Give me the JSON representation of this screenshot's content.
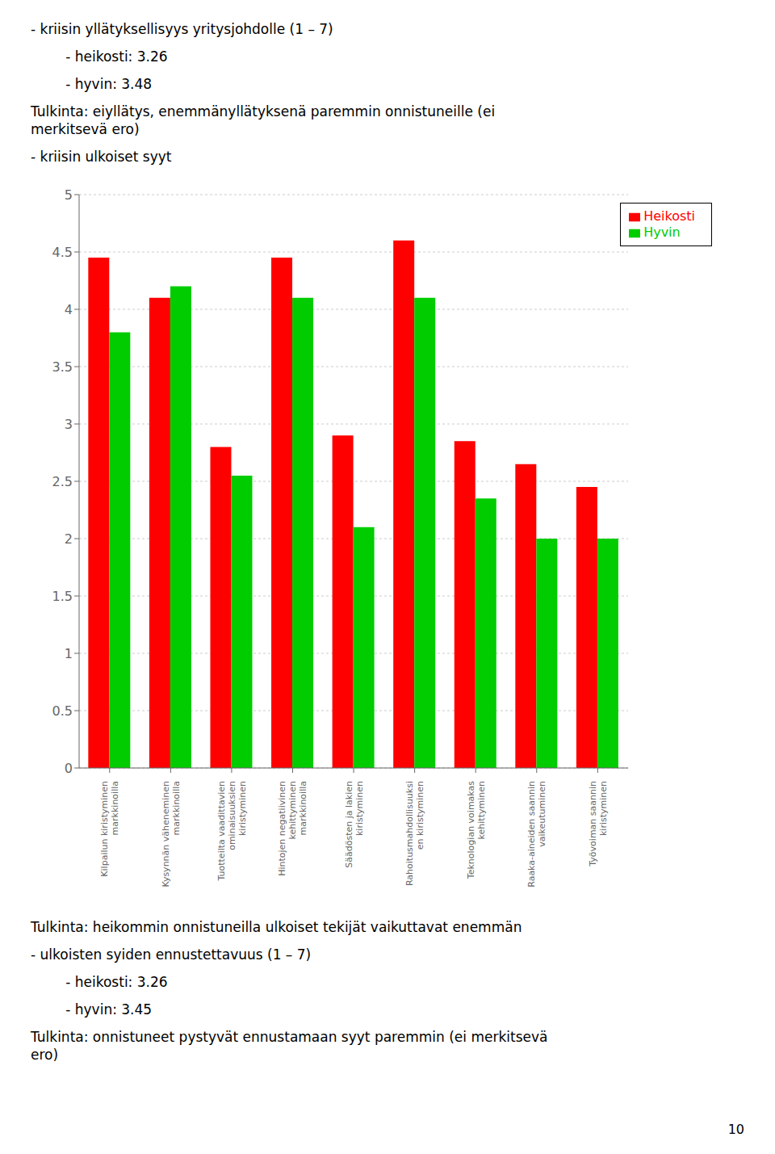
{
  "chart_data": {
    "type": "bar",
    "categories": [
      "Kilpailun kiristyminen\nmarkkinoilla",
      "Kysynnän väheneminen\nmarkkinoilla",
      "Tuotteilta vaadittavien\nominaisuuksien\nkiristyminen",
      "Hintojen negatiivinen\nkehittyminen\nmarkkinoilla",
      "Säädösten ja lakien\nkiristyminen",
      "Rahoitusmahdollisuuksi\nen kiristyminen",
      "Teknologian voimakas\nkehittyminen",
      "Raaka-aineiden saannin\nvaikeutuminen",
      "Työvoiman saannin\nkiristyminen"
    ],
    "series": [
      {
        "name": "Heikosti",
        "color": "#FF0000",
        "values": [
          4.45,
          4.1,
          2.8,
          4.45,
          2.9,
          4.6,
          2.85,
          2.65,
          2.45
        ]
      },
      {
        "name": "Hyvin",
        "color": "#00CC00",
        "values": [
          3.8,
          4.2,
          2.55,
          4.1,
          2.1,
          4.1,
          2.35,
          2.0,
          2.0
        ]
      }
    ],
    "ylim": [
      0,
      5
    ],
    "yticks": [
      0,
      0.5,
      1,
      1.5,
      2,
      2.5,
      3,
      3.5,
      4,
      4.5,
      5
    ],
    "grid": true,
    "legend": "upper right"
  },
  "text_above": [
    "- kriisin yllätyksellisyys yritysjohdolle (1 – 7)",
    "        - heikosti: 3.26",
    "        - hyvin: 3.48",
    "Tulkinta: eiyllätys, enemmänyllätyksenä paremmin onnistuneille (ei\nmerkitsevä ero)",
    "- kriisin ulkoiset syyt"
  ],
  "text_below": [
    "Tulkinta: heikommin onnistuneilla ulkoiset tekijät vaikuttavat enemmän",
    "- ulkoisten syiden ennustettavuus (1 – 7)",
    "        - heikosti: 3.26",
    "        - hyvin: 3.45",
    "Tulkinta: onnistuneet pystyvät ennustamaan syyt paremmin (ei merkitsevä\nero)"
  ],
  "page_number": "10"
}
